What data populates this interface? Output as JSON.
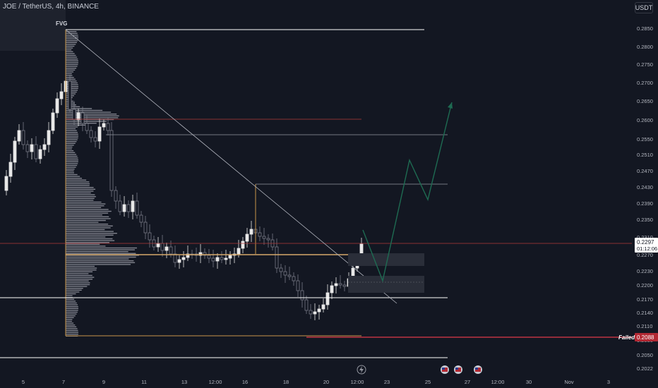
{
  "header": {
    "symbol_title": "JOE / TetherUS, 4h, BINANCE",
    "currency": "USDT"
  },
  "annotations": {
    "fvg": "FVG",
    "failed": "Failed"
  },
  "price_scale": {
    "labels": [
      "0.2850",
      "0.2800",
      "0.2750",
      "0.2700",
      "0.2650",
      "0.2600",
      "0.2550",
      "0.2510",
      "0.2470",
      "0.2430",
      "0.2390",
      "0.2350",
      "0.2310",
      "0.2270",
      "0.2230",
      "0.2200",
      "0.2170",
      "0.2140",
      "0.2110",
      "0.2080",
      "0.2050",
      "0.2022"
    ],
    "current_price": "0.2297",
    "countdown": "01:12:06",
    "failed_price": "0.2088"
  },
  "time_scale": {
    "labels": [
      "5",
      "7",
      "9",
      "11",
      "13",
      "12:00",
      "16",
      "18",
      "20",
      "12:00",
      "23",
      "25",
      "27",
      "12:00",
      "30",
      "Nov",
      "3"
    ]
  },
  "colors": {
    "background": "#131722",
    "candle_up": "#e8e8e8",
    "candle_down": "#787b86",
    "volume_profile": "#9598a1",
    "accent_orange": "#c8964a",
    "red_line": "#b33a3a",
    "projection_green": "#1e6b52",
    "failed_badge": "#b22833"
  },
  "icons": [
    "lightning-icon",
    "flag-icon"
  ]
}
